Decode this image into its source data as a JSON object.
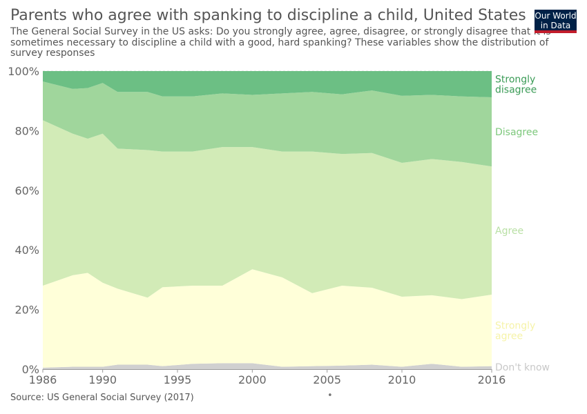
{
  "title": "Parents who agree with spanking to discipline a child, United States",
  "subtitle": "The General Social Survey in the US asks: Do you strongly agree, agree, disagree, or strongly disagree that it is sometimes necessary to discipline a child with a good, hard spanking? These variables show the distribution of survey responses",
  "logo_text": "Our World in Data",
  "source": "Source: US General Social Survey (2017)",
  "footer_dot": "•",
  "chart_data": {
    "type": "area",
    "stacked": true,
    "x": [
      1986,
      1988,
      1989,
      1990,
      1991,
      1993,
      1994,
      1996,
      1998,
      2000,
      2002,
      2004,
      2006,
      2008,
      2010,
      2012,
      2014,
      2016
    ],
    "xticks": [
      1986,
      1990,
      1995,
      2000,
      2005,
      2010,
      2016
    ],
    "ylim": [
      0,
      100
    ],
    "yticks": [
      0,
      20,
      40,
      60,
      80,
      100
    ],
    "ytick_labels": [
      "0%",
      "20%",
      "40%",
      "60%",
      "80%",
      "100%"
    ],
    "grid": true,
    "legend_placement": "right, inline labels",
    "series": [
      {
        "name": "Don't know",
        "color": "#d0d0d0",
        "label_color": "#c8c8c8",
        "values": [
          0.5,
          0.8,
          0.8,
          0.8,
          1.5,
          1.5,
          1.0,
          1.8,
          2.0,
          2.0,
          0.8,
          1.0,
          1.2,
          1.5,
          0.8,
          1.8,
          0.8,
          1.0
        ]
      },
      {
        "name": "Strongly agree",
        "color": "#ffffd9",
        "label_color": "#f6f3a8",
        "values": [
          27.5,
          30.7,
          31.5,
          28.2,
          25.5,
          22.5,
          26.5,
          26.2,
          26.0,
          31.5,
          30.0,
          24.5,
          26.8,
          25.8,
          23.5,
          23.0,
          22.7,
          24.0
        ]
      },
      {
        "name": "Agree",
        "color": "#d2ebb7",
        "label_color": "#b9e0a5",
        "values": [
          55.5,
          47.5,
          45.0,
          50.0,
          47.0,
          49.5,
          45.5,
          45.0,
          46.5,
          41.0,
          42.2,
          47.5,
          44.2,
          45.2,
          44.9,
          45.7,
          46.0,
          43.0
        ]
      },
      {
        "name": "Disagree",
        "color": "#a0d69c",
        "label_color": "#7dc87c",
        "values": [
          13.0,
          15.0,
          17.0,
          17.0,
          19.0,
          19.5,
          18.5,
          18.5,
          18.0,
          17.5,
          19.5,
          20.0,
          20.0,
          21.0,
          22.5,
          21.5,
          22.0,
          23.2
        ]
      },
      {
        "name": "Strongly disagree",
        "color": "#6cbf84",
        "label_color": "#3a9b56",
        "values": [
          3.5,
          6.0,
          5.7,
          4.0,
          7.0,
          7.0,
          8.5,
          8.5,
          7.5,
          8.0,
          7.5,
          7.0,
          7.8,
          6.5,
          8.3,
          8.0,
          8.5,
          8.8
        ]
      }
    ]
  }
}
